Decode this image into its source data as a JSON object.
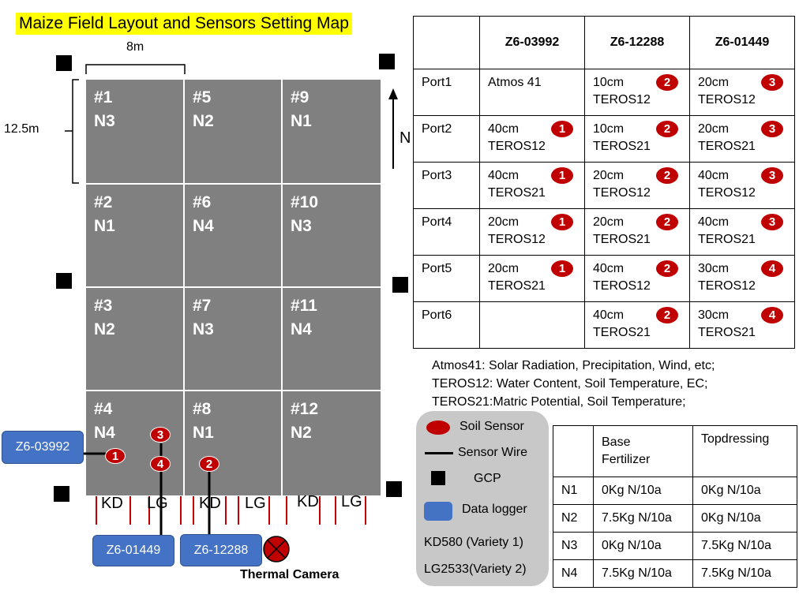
{
  "title": "Maize Field Layout and Sensors Setting Map",
  "dimensions": {
    "width_label": "8m",
    "height_label": "12.5m"
  },
  "north_label": "N",
  "plots": [
    {
      "id": "#1",
      "n": "N3"
    },
    {
      "id": "#5",
      "n": "N2"
    },
    {
      "id": "#9",
      "n": "N1"
    },
    {
      "id": "#2",
      "n": "N1"
    },
    {
      "id": "#6",
      "n": "N4"
    },
    {
      "id": "#10",
      "n": "N3"
    },
    {
      "id": "#3",
      "n": "N2"
    },
    {
      "id": "#7",
      "n": "N3"
    },
    {
      "id": "#11",
      "n": "N4"
    },
    {
      "id": "#4",
      "n": "N4"
    },
    {
      "id": "#8",
      "n": "N1"
    },
    {
      "id": "#12",
      "n": "N2"
    }
  ],
  "field_sensors": {
    "s1": "1",
    "s2": "2",
    "s3": "3",
    "s4": "4"
  },
  "loggers": {
    "left": "Z6-03992",
    "bottom_left": "Z6-01449",
    "bottom_right": "Z6-12288"
  },
  "variety_labels": [
    "KD",
    "LG",
    "KD",
    "LG",
    "KD",
    "LG"
  ],
  "thermal_camera_label": "Thermal Camera",
  "port_table": {
    "headers": [
      "",
      "Z6-03992",
      "Z6-12288",
      "Z6-01449"
    ],
    "rows": [
      {
        "port": "Port1",
        "c1": {
          "d": "Atmos 41",
          "s": "",
          "b": ""
        },
        "c2": {
          "d": "10cm",
          "s": "TEROS12",
          "b": "2"
        },
        "c3": {
          "d": "20cm",
          "s": "TEROS12",
          "b": "3"
        }
      },
      {
        "port": "Port2",
        "c1": {
          "d": "40cm",
          "s": "TEROS12",
          "b": "1"
        },
        "c2": {
          "d": "10cm",
          "s": "TEROS21",
          "b": "2"
        },
        "c3": {
          "d": "20cm",
          "s": "TEROS21",
          "b": "3"
        }
      },
      {
        "port": "Port3",
        "c1": {
          "d": "40cm",
          "s": "TEROS21",
          "b": "1"
        },
        "c2": {
          "d": "20cm",
          "s": "TEROS12",
          "b": "2"
        },
        "c3": {
          "d": "40cm",
          "s": "TEROS12",
          "b": "3"
        }
      },
      {
        "port": "Port4",
        "c1": {
          "d": "20cm",
          "s": "TEROS12",
          "b": "1"
        },
        "c2": {
          "d": "20cm",
          "s": "TEROS21",
          "b": "2"
        },
        "c3": {
          "d": "40cm",
          "s": "TEROS21",
          "b": "3"
        }
      },
      {
        "port": "Port5",
        "c1": {
          "d": "20cm",
          "s": "TEROS21",
          "b": "1"
        },
        "c2": {
          "d": "40cm",
          "s": "TEROS12",
          "b": "2"
        },
        "c3": {
          "d": "30cm",
          "s": "TEROS12",
          "b": "4"
        }
      },
      {
        "port": "Port6",
        "c1": {
          "d": "",
          "s": "",
          "b": ""
        },
        "c2": {
          "d": "40cm",
          "s": "TEROS21",
          "b": "2"
        },
        "c3": {
          "d": "30cm",
          "s": "TEROS21",
          "b": "4"
        }
      }
    ]
  },
  "notes": [
    "Atmos41: Solar Radiation, Precipitation, Wind, etc;",
    "TEROS12: Water Content, Soil Temperature, EC;",
    "TEROS21:Matric Potential, Soil Temperature;"
  ],
  "legend": {
    "soil_sensor": "Soil Sensor",
    "sensor_wire": "Sensor Wire",
    "gcp": "GCP",
    "data_logger": "Data logger",
    "variety1": "KD580  (Variety 1)",
    "variety2": "LG2533(Variety 2)"
  },
  "fert_table": {
    "headers": [
      "",
      "Base\nFertilizer",
      "Topdressing"
    ],
    "rows": [
      [
        "N1",
        "0Kg N/10a",
        "0Kg N/10a"
      ],
      [
        "N2",
        "7.5Kg N/10a",
        "0Kg N/10a"
      ],
      [
        "N3",
        "0Kg N/10a",
        "7.5Kg N/10a"
      ],
      [
        "N4",
        "7.5Kg N/10a",
        "7.5Kg N/10a"
      ]
    ]
  },
  "colors": {
    "plot": "#808080",
    "sensor": "#c00000",
    "logger": "#4472c4",
    "title_bg": "#ffff00"
  }
}
